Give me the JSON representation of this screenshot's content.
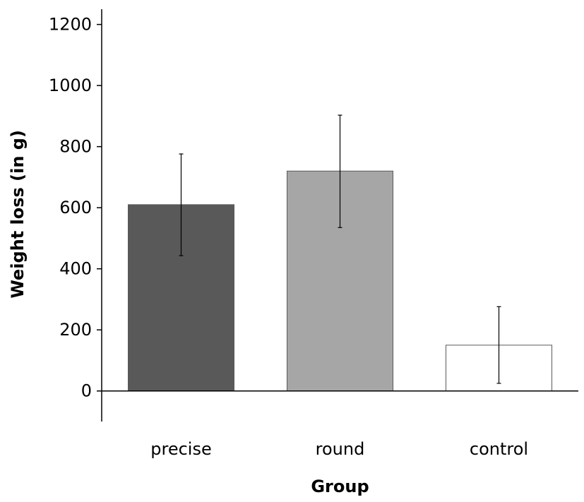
{
  "chart_data": {
    "type": "bar",
    "title": "",
    "xlabel": "Group",
    "ylabel": "Weight loss (in g)",
    "ylim": [
      -100,
      1250
    ],
    "yticks": [
      0,
      200,
      400,
      600,
      800,
      1000,
      1200
    ],
    "categories": [
      "precise",
      "round",
      "control"
    ],
    "values": [
      610,
      720,
      150
    ],
    "error_low": [
      443,
      535,
      25
    ],
    "error_high": [
      776,
      903,
      276
    ],
    "colors": [
      "#595959",
      "#a6a6a6",
      "#ffffff"
    ],
    "grid": false,
    "legend": "none"
  }
}
